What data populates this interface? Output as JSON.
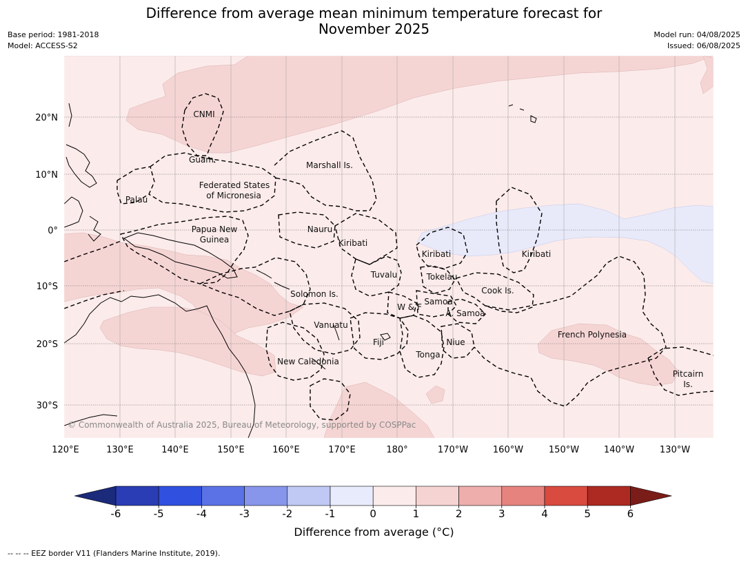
{
  "title_line1": "Difference from average mean minimum temperature forecast for",
  "title_line2": "November 2025",
  "meta": {
    "base_period": "Base period: 1981-2018",
    "model": "Model: ACCESS-S2",
    "model_run": "Model run: 04/08/2025",
    "issued": "Issued: 06/08/2025"
  },
  "lat_labels": [
    "20°N",
    "10°N",
    "0°",
    "10°S",
    "20°S",
    "30°S"
  ],
  "lon_labels": [
    "120°E",
    "130°E",
    "140°E",
    "150°E",
    "160°E",
    "170°E",
    "180°",
    "170°W",
    "160°W",
    "150°W",
    "140°W",
    "130°W"
  ],
  "places": {
    "cnmi": "CNMI",
    "guam": "Guam",
    "marshall": "Marshall Is.",
    "fsm1": "Federated States",
    "fsm2": "of Micronesia",
    "palau": "Palau",
    "png1": "Papua New",
    "png2": "Guinea",
    "nauru": "Nauru",
    "kiribati1": "Kiribati",
    "kiribati2": "Kiribati",
    "kiribati3": "Kiribati",
    "tuvalu": "Tuvalu",
    "tokelau": "Tokelau",
    "cook": "Cook Is.",
    "solomon": "Solomon Is.",
    "samoa": "Samoa",
    "wf": "W & F",
    "asamoa": "A. Samoa",
    "vanuatu": "Vanuatu",
    "fiji": "Fiji",
    "niue": "Niue",
    "tonga": "Tonga",
    "frpoly": "French Polynesia",
    "newcal": "New Caledonia",
    "pitcairn1": "Pitcairn",
    "pitcairn2": "Is."
  },
  "copyright": "© Commonwealth of Australia 2025, Bureau of Meteorology, supported by COSPPac",
  "colorbar": {
    "ticks": [
      "-6",
      "-5",
      "-4",
      "-3",
      "-2",
      "-1",
      "0",
      "1",
      "2",
      "3",
      "4",
      "5",
      "6"
    ],
    "colors": [
      "#1b2a7a",
      "#2a3db4",
      "#3050df",
      "#5a72e6",
      "#8796ea",
      "#c0c8f4",
      "#e8ebfb",
      "#fbebea",
      "#f5d3d2",
      "#eeaeab",
      "#e6837e",
      "#d94a3f",
      "#ac2a21",
      "#7a1c18"
    ],
    "title": "Difference from average (°C)"
  },
  "footnote": "--  --  -- EEZ border V11 (Flanders Marine Institute, 2019)."
}
